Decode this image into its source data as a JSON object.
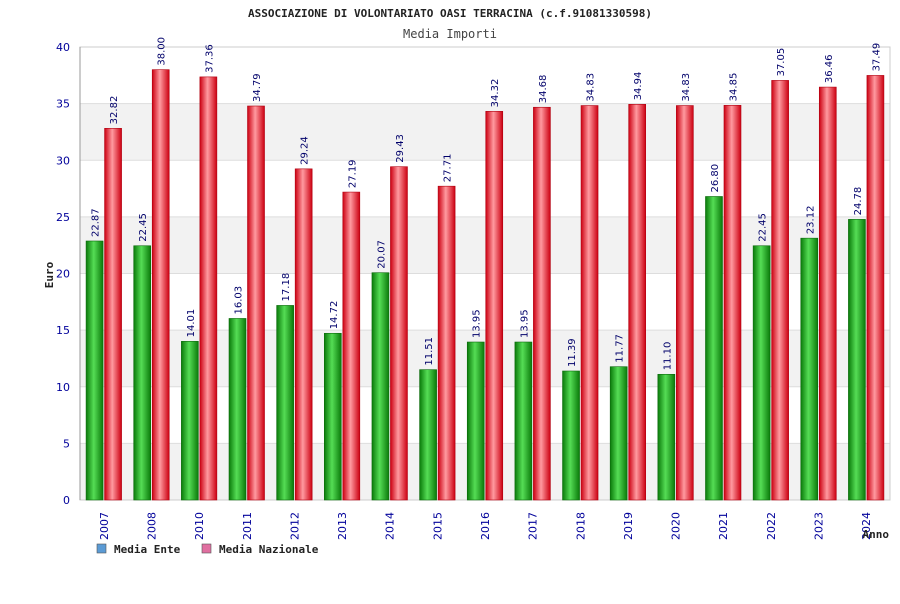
{
  "chart_data": {
    "type": "bar",
    "title": "ASSOCIAZIONE DI VOLONTARIATO OASI TERRACINA (c.f.91081330598)",
    "subtitle": "Media Importi",
    "xlabel": "Anno",
    "ylabel": "Euro",
    "ylim": [
      0,
      40
    ],
    "yticks": [
      0,
      5,
      10,
      15,
      20,
      25,
      30,
      35,
      40
    ],
    "categories": [
      "2007",
      "2008",
      "2010",
      "2011",
      "2012",
      "2013",
      "2014",
      "2015",
      "2016",
      "2017",
      "2018",
      "2019",
      "2020",
      "2021",
      "2022",
      "2023",
      "2024"
    ],
    "series": [
      {
        "name": "Media Ente",
        "color": "#22aa22",
        "values": [
          22.87,
          22.45,
          14.01,
          16.03,
          17.18,
          14.72,
          20.07,
          11.51,
          13.95,
          13.95,
          11.39,
          11.77,
          11.1,
          26.8,
          22.45,
          23.12,
          24.78
        ],
        "labels": [
          "22.87",
          "22.45",
          "14.01",
          "16.03",
          "17.18",
          "14.72",
          "20.07",
          "11.51",
          "13.95",
          "13.95",
          "11.39",
          "11.77",
          "11.10",
          "26.80",
          "22.45",
          "23.12",
          "24.78"
        ]
      },
      {
        "name": "Media Nazionale",
        "color": "#ee2233",
        "values": [
          32.82,
          38.0,
          37.36,
          34.79,
          29.24,
          27.19,
          29.43,
          27.71,
          34.32,
          34.68,
          34.83,
          34.94,
          34.83,
          34.85,
          37.05,
          36.46,
          37.49
        ],
        "labels": [
          "32.82",
          "38.00",
          "37.36",
          "34.79",
          "29.24",
          "27.19",
          "29.43",
          "27.71",
          "34.32",
          "34.68",
          "34.83",
          "34.94",
          "34.83",
          "34.85",
          "37.05",
          "36.46",
          "37.49"
        ]
      }
    ],
    "legend": [
      {
        "label": "Media Ente",
        "color": "#5b9bd5"
      },
      {
        "label": "Media Nazionale",
        "color": "#e06fa0"
      }
    ],
    "grid": true,
    "legend_position": "bottom-left"
  }
}
